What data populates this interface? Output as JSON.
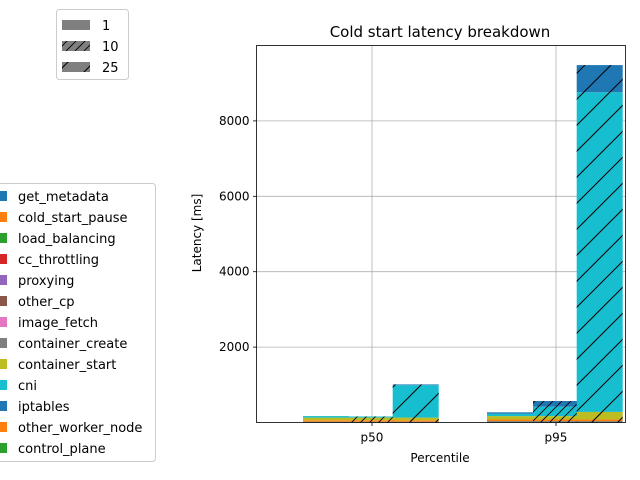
{
  "chart_data": {
    "type": "bar",
    "stacked": true,
    "title": "Cold start latency breakdown",
    "xlabel": "Percentile",
    "ylabel": "Latency [ms]",
    "categories": [
      "p50",
      "p95"
    ],
    "ylim": [
      0,
      10000
    ],
    "yticks": [
      2000,
      4000,
      6000,
      8000
    ],
    "grid": true,
    "group_sizes": [
      "1",
      "10",
      "25"
    ],
    "group_hatches": [
      "none",
      "//",
      "/"
    ],
    "series": [
      {
        "name": "get_metadata",
        "color": "#1f77b4"
      },
      {
        "name": "cold_start_pause",
        "color": "#ff7f0e"
      },
      {
        "name": "load_balancing",
        "color": "#2ca02c"
      },
      {
        "name": "cc_throttling",
        "color": "#d62728"
      },
      {
        "name": "proxying",
        "color": "#9467bd"
      },
      {
        "name": "other_cp",
        "color": "#8c564b"
      },
      {
        "name": "image_fetch",
        "color": "#e377c2"
      },
      {
        "name": "container_create",
        "color": "#7f7f7f"
      },
      {
        "name": "container_start",
        "color": "#bcbd22"
      },
      {
        "name": "cni",
        "color": "#17becf"
      },
      {
        "name": "iptables",
        "color": "#1f77b4"
      },
      {
        "name": "other_worker_node",
        "color": "#ff7f0e"
      },
      {
        "name": "control_plane",
        "color": "#2ca02c"
      }
    ],
    "bars": [
      {
        "category": "p50",
        "group": "1",
        "segments": [
          {
            "series": "get_metadata",
            "value": 20
          },
          {
            "series": "cold_start_pause",
            "value": 40
          },
          {
            "series": "container_start",
            "value": 70
          },
          {
            "series": "cni",
            "value": 40
          }
        ]
      },
      {
        "category": "p50",
        "group": "10",
        "segments": [
          {
            "series": "get_metadata",
            "value": 20
          },
          {
            "series": "cold_start_pause",
            "value": 40
          },
          {
            "series": "container_start",
            "value": 70
          },
          {
            "series": "cni",
            "value": 30
          }
        ]
      },
      {
        "category": "p50",
        "group": "25",
        "segments": [
          {
            "series": "get_metadata",
            "value": 20
          },
          {
            "series": "cold_start_pause",
            "value": 40
          },
          {
            "series": "container_start",
            "value": 70
          },
          {
            "series": "cni",
            "value": 860
          },
          {
            "series": "iptables",
            "value": 20
          }
        ]
      },
      {
        "category": "p95",
        "group": "1",
        "segments": [
          {
            "series": "get_metadata",
            "value": 30
          },
          {
            "series": "cold_start_pause",
            "value": 50
          },
          {
            "series": "container_start",
            "value": 90
          },
          {
            "series": "cni",
            "value": 60
          },
          {
            "series": "iptables",
            "value": 40
          }
        ]
      },
      {
        "category": "p95",
        "group": "10",
        "segments": [
          {
            "series": "get_metadata",
            "value": 30
          },
          {
            "series": "cold_start_pause",
            "value": 50
          },
          {
            "series": "container_start",
            "value": 90
          },
          {
            "series": "cni",
            "value": 250
          },
          {
            "series": "iptables",
            "value": 150
          }
        ]
      },
      {
        "category": "p95",
        "group": "25",
        "segments": [
          {
            "series": "get_metadata",
            "value": 30
          },
          {
            "series": "cold_start_pause",
            "value": 50
          },
          {
            "series": "container_start",
            "value": 200
          },
          {
            "series": "cni",
            "value": 8480
          },
          {
            "series": "iptables",
            "value": 720
          }
        ]
      }
    ]
  }
}
